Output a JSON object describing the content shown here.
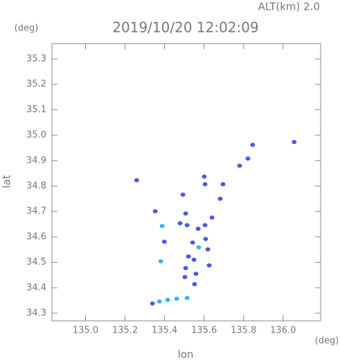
{
  "chart_data": {
    "type": "scatter",
    "title": "2019/10/20 12:02:09",
    "subtitle": "ALT(km) 2.0",
    "x_label": "lon",
    "y_label": "lat",
    "x_unit": "(deg)",
    "y_unit": "(deg)",
    "xlim": [
      134.83,
      136.19
    ],
    "ylim": [
      34.27,
      35.36
    ],
    "xticks": [
      {
        "value": 135.0,
        "label": "135.0"
      },
      135.2,
      135.4,
      135.6,
      135.8,
      {
        "value": 136.0,
        "label": "136.0"
      }
    ],
    "yticks": [
      34.3,
      34.4,
      34.5,
      34.6,
      34.7,
      34.8,
      34.9,
      {
        "value": 35.0,
        "label": "35.0"
      },
      35.1,
      35.2,
      35.3
    ],
    "series": [
      {
        "color": "#4a58f0",
        "x": [
          135.259,
          135.846,
          136.056,
          135.78,
          135.822,
          135.601,
          135.605,
          135.696,
          135.493,
          135.682,
          135.353,
          135.507,
          135.514,
          135.479,
          135.64,
          135.605,
          135.57,
          135.608,
          135.542,
          135.399,
          135.619,
          135.521,
          135.549,
          135.626,
          135.507,
          135.559,
          135.503,
          135.552,
          135.339
        ],
        "values": [
          34.823,
          34.962,
          34.973,
          34.88,
          34.908,
          34.837,
          34.807,
          34.807,
          34.766,
          34.75,
          34.701,
          34.692,
          34.646,
          34.654,
          34.676,
          34.646,
          34.632,
          34.592,
          34.578,
          34.581,
          34.551,
          34.523,
          34.51,
          34.488,
          34.477,
          34.455,
          34.442,
          34.414,
          34.338
        ]
      },
      {
        "color": "#38b4f0",
        "x": [
          135.388,
          135.573,
          135.381,
          135.374,
          135.416,
          135.462,
          135.514
        ],
        "values": [
          34.643,
          34.559,
          34.504,
          34.346,
          34.352,
          34.357,
          34.36
        ]
      }
    ]
  }
}
